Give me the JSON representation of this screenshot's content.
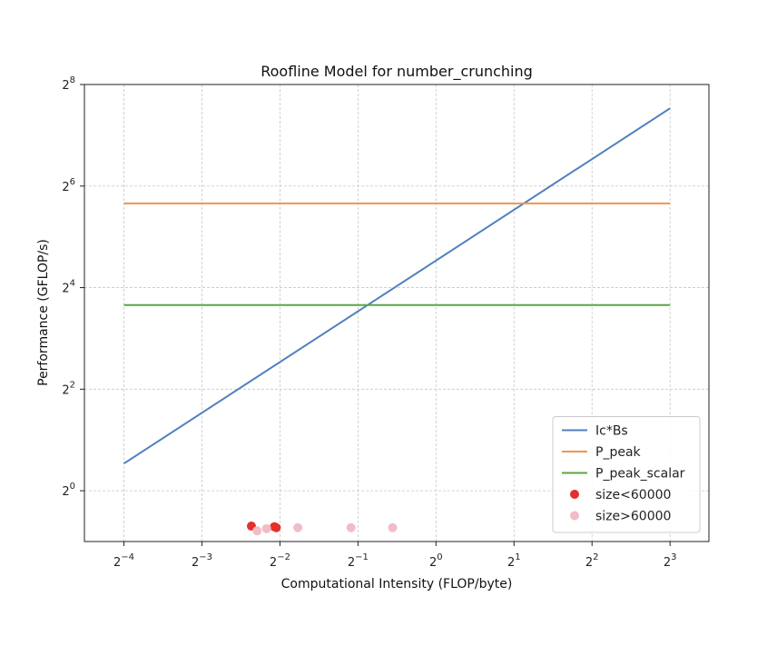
{
  "chart_data": {
    "type": "line",
    "title": "Roofline Model for number_crunching",
    "xlabel": "Computational Intensity (FLOP/byte)",
    "ylabel": "Performance (GFLOP/s)",
    "xscale": "log2",
    "yscale": "log2",
    "xlim": [
      0.044,
      11.3
    ],
    "ylim": [
      0.5,
      256
    ],
    "xticks": [
      {
        "value": 0.0625,
        "base": "2",
        "exp": "−4"
      },
      {
        "value": 0.125,
        "base": "2",
        "exp": "−3"
      },
      {
        "value": 0.25,
        "base": "2",
        "exp": "−2"
      },
      {
        "value": 0.5,
        "base": "2",
        "exp": "−1"
      },
      {
        "value": 1,
        "base": "2",
        "exp": "0"
      },
      {
        "value": 2,
        "base": "2",
        "exp": "1"
      },
      {
        "value": 4,
        "base": "2",
        "exp": "2"
      },
      {
        "value": 8,
        "base": "2",
        "exp": "3"
      }
    ],
    "yticks": [
      {
        "value": 1,
        "base": "2",
        "exp": "0"
      },
      {
        "value": 4,
        "base": "2",
        "exp": "2"
      },
      {
        "value": 16,
        "base": "2",
        "exp": "4"
      },
      {
        "value": 64,
        "base": "2",
        "exp": "6"
      },
      {
        "value": 256,
        "base": "2",
        "exp": "8"
      }
    ],
    "grid": true,
    "legend_position": "lower-right",
    "series": [
      {
        "name": "Ic*Bs",
        "kind": "line",
        "color": "#4f81bd",
        "x": [
          0.0625,
          8
        ],
        "y": [
          1.45,
          185
        ]
      },
      {
        "name": "P_peak",
        "kind": "line",
        "color": "#f0954a",
        "x": [
          0.0625,
          8
        ],
        "y": [
          50.5,
          50.5
        ]
      },
      {
        "name": "P_peak_scalar",
        "kind": "line",
        "color": "#5aa646",
        "x": [
          0.0625,
          8
        ],
        "y": [
          12.6,
          12.6
        ]
      },
      {
        "name": "size<60000",
        "kind": "scatter",
        "color": "#e3302a",
        "points": [
          {
            "x": 0.194,
            "y": 0.617
          },
          {
            "x": 0.238,
            "y": 0.612
          },
          {
            "x": 0.242,
            "y": 0.604
          }
        ]
      },
      {
        "name": "size>60000",
        "kind": "scatter",
        "color": "#f2bcc6",
        "points": [
          {
            "x": 0.204,
            "y": 0.578
          },
          {
            "x": 0.222,
            "y": 0.596
          },
          {
            "x": 0.293,
            "y": 0.604
          },
          {
            "x": 0.47,
            "y": 0.604
          },
          {
            "x": 0.68,
            "y": 0.604
          }
        ]
      }
    ]
  }
}
